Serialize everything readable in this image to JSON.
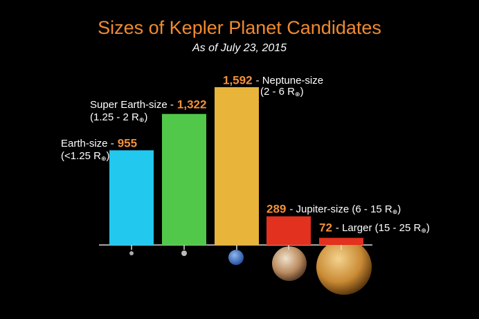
{
  "chart_data": {
    "type": "bar",
    "title": "Sizes of Kepler Planet Candidates",
    "subtitle": "As of July 23, 2015",
    "categories": [
      "Earth-size -",
      "Super Earth-size -",
      "- Neptune-size",
      "- Jupiter-size (6 - 15 R⊕)",
      "- Larger (15 - 25 R⊕)"
    ],
    "ranges": [
      "(<1.25 R⊕)",
      "(1.25 - 2 R⊕)",
      "(2 - 6 R⊕)",
      null,
      null
    ],
    "values": [
      955,
      1322,
      1592,
      289,
      72
    ],
    "value_labels": [
      "955",
      "1,322",
      "1,592",
      "289",
      "72"
    ],
    "colors": [
      "#22c8ee",
      "#52c84a",
      "#e8b43a",
      "#e2311f",
      "#e2311f"
    ]
  }
}
